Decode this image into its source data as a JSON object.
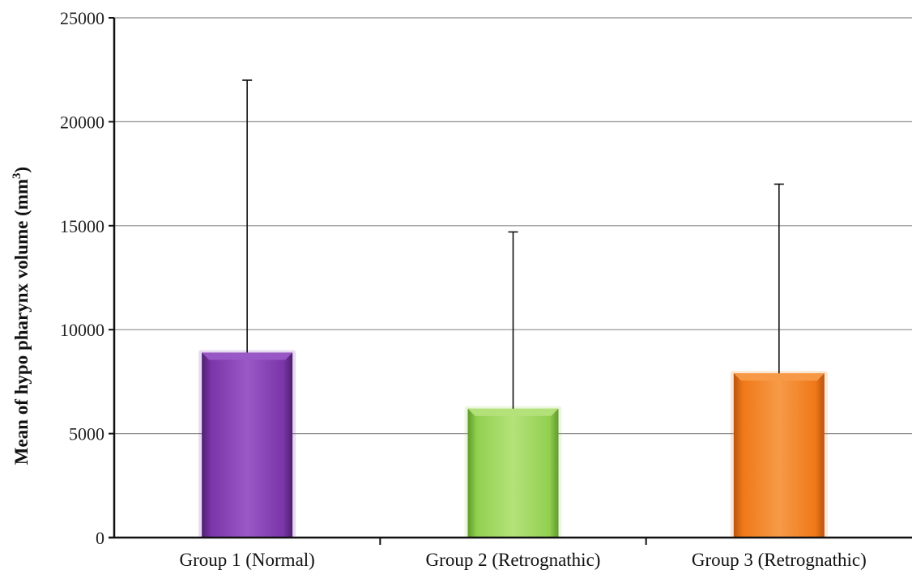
{
  "chart_data": {
    "type": "bar",
    "title": "",
    "xlabel": "",
    "ylabel_main": "Mean of hypo  pharynx  volume  (mm",
    "ylabel_sup": "3",
    "ylabel_close": ")",
    "ylim": [
      0,
      25000
    ],
    "yticks": [
      0,
      5000,
      10000,
      15000,
      20000,
      25000
    ],
    "grid": true,
    "legend": "none",
    "categories": [
      "Group 1 (Normal)",
      "Group 2 (Retrognathic)",
      "Group 3 (Retrognathic)"
    ],
    "values": [
      8900,
      6200,
      7900
    ],
    "error_upper": [
      22000,
      14700,
      17000
    ],
    "colors": [
      "#7a35a8",
      "#92d050",
      "#f07818"
    ],
    "colors_light": [
      "#9a58c6",
      "#b4e27a",
      "#f79a48"
    ],
    "colors_dark": [
      "#4f1f72",
      "#5f9a2c",
      "#b85410"
    ]
  }
}
